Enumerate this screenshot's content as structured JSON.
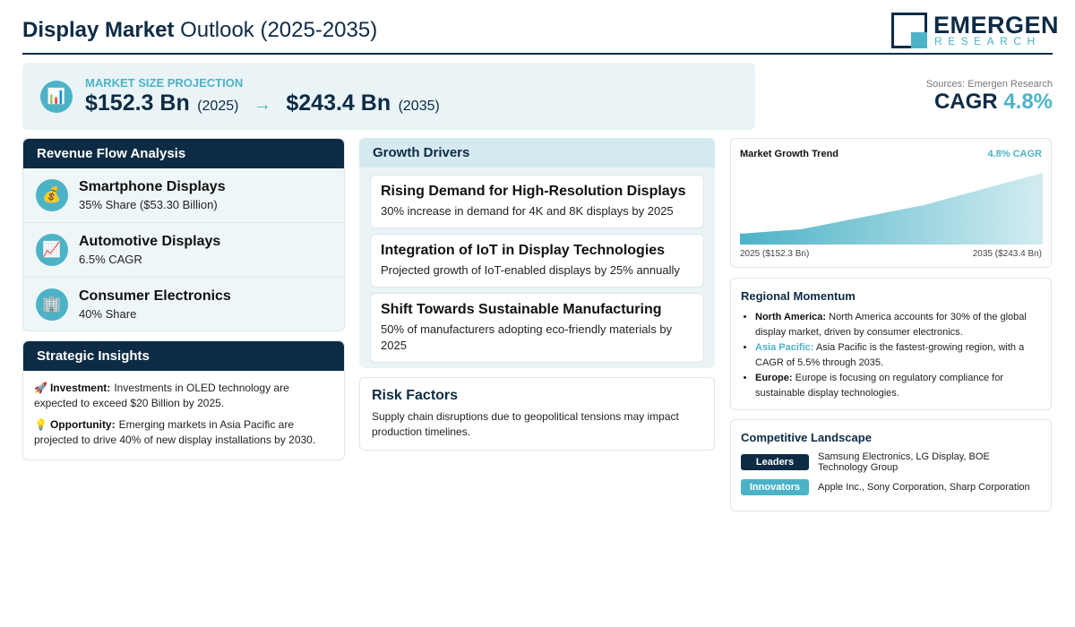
{
  "header": {
    "title_bold": "Display Market",
    "title_rest": "Outlook (2025-2035)",
    "logo_top": "EMERGEN",
    "logo_bottom": "RESEARCH"
  },
  "projection": {
    "icon": "📊",
    "label": "MARKET SIZE PROJECTION",
    "start_value": "$152.3 Bn",
    "start_year": "(2025)",
    "arrow": "→",
    "end_value": "$243.4 Bn",
    "end_year": "(2035)"
  },
  "cagr": {
    "source": "Sources: Emergen Research",
    "label": "CAGR",
    "value": "4.8%"
  },
  "revenue_flow": {
    "title": "Revenue Flow Analysis",
    "items": [
      {
        "icon": "💰",
        "name": "Smartphone Displays",
        "detail": "35% Share ($53.30 Billion)"
      },
      {
        "icon": "📈",
        "name": "Automotive Displays",
        "detail": "6.5% CAGR"
      },
      {
        "icon": "🏢",
        "name": "Consumer Electronics",
        "detail": "40% Share"
      }
    ]
  },
  "strategic_insights": {
    "title": "Strategic Insights",
    "items": [
      {
        "icon": "🚀",
        "label": "Investment:",
        "text": "Investments in OLED technology are expected to exceed $20 Billion by 2025."
      },
      {
        "icon": "💡",
        "label": "Opportunity:",
        "text": "Emerging markets in Asia Pacific are projected to drive 40% of new display installations by 2030."
      }
    ]
  },
  "growth_drivers": {
    "title": "Growth Drivers",
    "items": [
      {
        "title": "Rising Demand for High-Resolution Displays",
        "text": "30% increase in demand for 4K and 8K displays by 2025"
      },
      {
        "title": "Integration of IoT in Display Technologies",
        "text": "Projected growth of IoT-enabled displays by 25% annually"
      },
      {
        "title": "Shift Towards Sustainable Manufacturing",
        "text": "50% of manufacturers adopting eco-friendly materials by 2025"
      }
    ]
  },
  "risk_factors": {
    "title": "Risk Factors",
    "text": "Supply chain disruptions due to geopolitical tensions may impact production timelines."
  },
  "growth_trend": {
    "title": "Market Growth Trend",
    "badge": "4.8% CAGR",
    "start_label": "2025 ($152.3 Bn)",
    "end_label": "2035 ($243.4 Bn)"
  },
  "regional_momentum": {
    "title": "Regional Momentum",
    "items": [
      {
        "label": "North America:",
        "text": "North America accounts for 30% of the global display market, driven by consumer electronics."
      },
      {
        "label": "Asia Pacific:",
        "text": "Asia Pacific is the fastest-growing region, with a CAGR of 5.5% through 2035."
      },
      {
        "label": "Europe:",
        "text": "Europe is focusing on regulatory compliance for sustainable display technologies."
      }
    ]
  },
  "competitive_landscape": {
    "title": "Competitive Landscape",
    "rows": [
      {
        "tag": "Leaders",
        "text": "Samsung Electronics, LG Display, BOE Technology Group"
      },
      {
        "tag": "Innovators",
        "text": "Apple Inc., Sony Corporation, Sharp Corporation"
      }
    ]
  }
}
